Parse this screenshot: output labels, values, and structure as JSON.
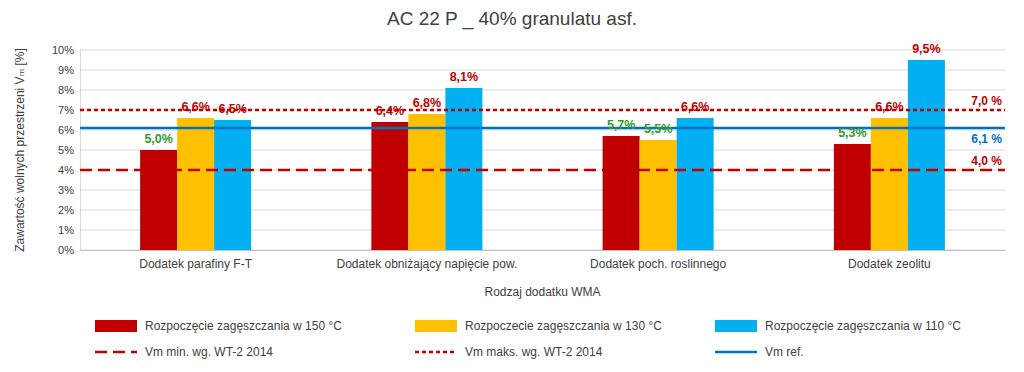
{
  "chart_data": {
    "type": "bar",
    "title": "AC 22 P _ 40% granulatu asf.",
    "x_label": "Rodzaj dodatku WMA",
    "y_label": "Zawartość wolnych przestrzeni Vₘ [%]",
    "categories": [
      "Dodatek parafiny F-T",
      "Dodatek obniżający napięcie pow.",
      "Dodatek poch. roslinnego",
      "Dodatek zeolitu"
    ],
    "series": [
      {
        "name": "Rozpoczęcie zagęszczania w 150 °C",
        "color": "#c00000",
        "values": [
          5.0,
          6.4,
          5.7,
          5.3
        ],
        "value_labels": [
          "5,0%",
          "6,4%",
          "5,7%",
          "5,3%"
        ]
      },
      {
        "name": "Rozpoczecie zagęszczania w 130 °C",
        "color": "#ffc000",
        "values": [
          6.6,
          6.8,
          5.5,
          6.6
        ],
        "value_labels": [
          "6,6%",
          "6,8%",
          "5,5%",
          "6,6%"
        ]
      },
      {
        "name": "Rozpoczęcie zagęszczania w 110 °C",
        "color": "#00b0f0",
        "values": [
          6.5,
          8.1,
          6.6,
          9.5
        ],
        "value_labels": [
          "6,5%",
          "8,1%",
          "6,6%",
          "9,5%"
        ]
      }
    ],
    "lines": [
      {
        "name": "Vm min. wg. WT-2 2014",
        "value": 4.0,
        "value_label": "4,0 %",
        "color": "#c00000",
        "line_style": "dashed"
      },
      {
        "name": "Vm maks. wg. WT-2 2014",
        "value": 7.0,
        "value_label": "7,0 %",
        "color": "#c00000",
        "line_style": "dotted"
      },
      {
        "name": "Vm ref.",
        "value": 6.1,
        "value_label": "6,1 %",
        "color": "#0070c0",
        "line_style": "solid"
      }
    ],
    "ylim": [
      0,
      10
    ],
    "yticks": [
      {
        "value": 0,
        "label": "0%"
      },
      {
        "value": 1,
        "label": "1%"
      },
      {
        "value": 2,
        "label": "2%"
      },
      {
        "value": 3,
        "label": "3%"
      },
      {
        "value": 4,
        "label": "4%"
      },
      {
        "value": 5,
        "label": "5%"
      },
      {
        "value": 6,
        "label": "6%"
      },
      {
        "value": 7,
        "label": "7%"
      },
      {
        "value": 8,
        "label": "8%"
      },
      {
        "value": 9,
        "label": "9%"
      },
      {
        "value": 10,
        "label": "10%"
      }
    ],
    "grid": true,
    "data_labels": true,
    "legend": "bottom"
  }
}
